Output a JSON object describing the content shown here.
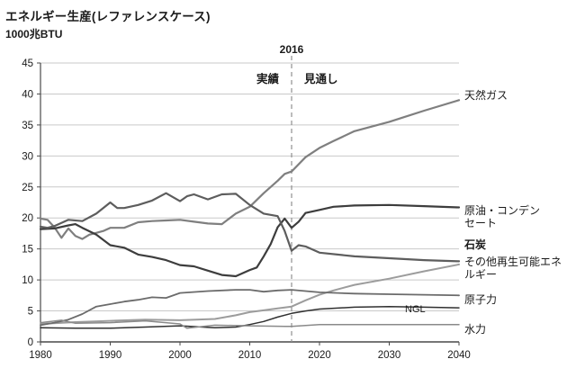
{
  "header": {
    "title": "エネルギー生産(レファレンスケース)",
    "unit": "1000兆BTU"
  },
  "annotations": {
    "divider_year": "2016",
    "left_label": "実績",
    "right_label": "見通し"
  },
  "chart_data": {
    "type": "line",
    "title": "エネルギー生産(レファレンスケース)",
    "ylabel": "1000兆BTU",
    "xlim": [
      1980,
      2040
    ],
    "ylim": [
      0,
      45
    ],
    "x_ticks": [
      1980,
      1990,
      2000,
      2010,
      2020,
      2030,
      2040
    ],
    "y_ticks": [
      0,
      5,
      10,
      15,
      20,
      25,
      30,
      35,
      40,
      45
    ],
    "divider_x": 2016,
    "grid": true,
    "legend_position": "right-outside",
    "series": [
      {
        "name": "natural_gas",
        "label": "天然ガス",
        "color": "#7f7f7f",
        "width": 2.2,
        "x": [
          1980,
          1981,
          1982,
          1983,
          1984,
          1985,
          1986,
          1987,
          1988,
          1989,
          1990,
          1992,
          1994,
          1996,
          1998,
          2000,
          2002,
          2004,
          2006,
          2008,
          2010,
          2012,
          2014,
          2015,
          2016,
          2018,
          2020,
          2022,
          2025,
          2030,
          2035,
          2040
        ],
        "y": [
          19.9,
          19.7,
          18.5,
          16.8,
          18.3,
          17.1,
          16.6,
          17.3,
          17.6,
          17.9,
          18.4,
          18.4,
          19.3,
          19.5,
          19.6,
          19.7,
          19.4,
          19.1,
          19.0,
          20.7,
          21.8,
          24.0,
          26.0,
          27.1,
          27.5,
          29.8,
          31.3,
          32.4,
          34.0,
          35.5,
          37.3,
          39.0
        ]
      },
      {
        "name": "crude_oil_condensate",
        "label": "原油・コンデンセート",
        "color": "#3d3d3d",
        "width": 2.2,
        "x": [
          1980,
          1982,
          1984,
          1985,
          1986,
          1988,
          1990,
          1992,
          1994,
          1996,
          1998,
          2000,
          2002,
          2004,
          2006,
          2008,
          2010,
          2011,
          2012,
          2013,
          2014,
          2015,
          2016,
          2017,
          2018,
          2020,
          2022,
          2025,
          2030,
          2035,
          2040
        ],
        "y": [
          18.2,
          18.3,
          18.8,
          19.0,
          18.4,
          17.3,
          15.6,
          15.2,
          14.1,
          13.7,
          13.2,
          12.4,
          12.2,
          11.5,
          10.8,
          10.6,
          11.6,
          12.0,
          13.8,
          15.8,
          18.5,
          19.9,
          18.4,
          19.4,
          20.8,
          21.3,
          21.8,
          22.0,
          22.1,
          21.9,
          21.7
        ]
      },
      {
        "name": "coal",
        "label": "石炭",
        "color": "#5d5d5d",
        "width": 2.2,
        "x": [
          1980,
          1981,
          1982,
          1984,
          1986,
          1988,
          1990,
          1991,
          1992,
          1994,
          1996,
          1998,
          2000,
          2001,
          2002,
          2004,
          2006,
          2008,
          2010,
          2012,
          2014,
          2015,
          2016,
          2017,
          2018,
          2020,
          2025,
          2030,
          2035,
          2040
        ],
        "y": [
          18.6,
          18.4,
          18.7,
          19.7,
          19.5,
          20.7,
          22.5,
          21.6,
          21.6,
          22.1,
          22.8,
          24.0,
          22.7,
          23.5,
          23.8,
          23.0,
          23.8,
          23.9,
          22.1,
          20.7,
          20.3,
          17.9,
          14.7,
          15.6,
          15.4,
          14.4,
          13.8,
          13.5,
          13.2,
          13.0
        ]
      },
      {
        "name": "other_renewables",
        "label": "その他再生可能エネルギー",
        "color": "#9c9c9c",
        "width": 2.0,
        "x": [
          1980,
          1985,
          1990,
          1995,
          2000,
          2005,
          2008,
          2010,
          2012,
          2014,
          2016,
          2018,
          2020,
          2022,
          2025,
          2030,
          2035,
          2040
        ],
        "y": [
          2.9,
          3.2,
          3.4,
          3.6,
          3.5,
          3.7,
          4.3,
          4.8,
          5.1,
          5.4,
          5.7,
          6.7,
          7.6,
          8.3,
          9.2,
          10.2,
          11.4,
          12.5
        ]
      },
      {
        "name": "nuclear",
        "label": "原子力",
        "color": "#6b6b6b",
        "width": 1.8,
        "x": [
          1980,
          1982,
          1984,
          1986,
          1988,
          1990,
          1992,
          1994,
          1996,
          1998,
          2000,
          2004,
          2008,
          2010,
          2012,
          2014,
          2016,
          2018,
          2020,
          2025,
          2030,
          2035,
          2040
        ],
        "y": [
          2.7,
          3.1,
          3.6,
          4.5,
          5.7,
          6.1,
          6.5,
          6.8,
          7.2,
          7.1,
          7.9,
          8.2,
          8.4,
          8.4,
          8.1,
          8.3,
          8.4,
          8.2,
          8.0,
          7.8,
          7.7,
          7.6,
          7.5
        ]
      },
      {
        "name": "ngl",
        "label": "NGL",
        "color": "#303030",
        "width": 1.5,
        "x": [
          1980,
          1985,
          1990,
          1995,
          2000,
          2005,
          2008,
          2010,
          2012,
          2014,
          2016,
          2018,
          2020,
          2025,
          2030,
          2035,
          2040
        ],
        "y": [
          2.3,
          2.2,
          2.2,
          2.4,
          2.6,
          2.3,
          2.4,
          2.8,
          3.3,
          4.0,
          4.6,
          5.0,
          5.3,
          5.6,
          5.7,
          5.6,
          5.5
        ]
      },
      {
        "name": "hydro",
        "label": "水力",
        "color": "#8a8a8a",
        "width": 1.5,
        "x": [
          1980,
          1983,
          1985,
          1990,
          1995,
          2000,
          2001,
          2005,
          2010,
          2015,
          2016,
          2020,
          2025,
          2030,
          2035,
          2040
        ],
        "y": [
          3.1,
          3.5,
          3.0,
          3.1,
          3.4,
          2.9,
          2.2,
          2.7,
          2.6,
          2.5,
          2.5,
          2.8,
          2.8,
          2.8,
          2.8,
          2.8
        ]
      }
    ]
  },
  "style": {
    "grid_color": "#c9c9c9",
    "axis_color": "#4a4a4a",
    "divider_color": "#8f8f8f",
    "tick_label_color": "#1a1a1a"
  }
}
